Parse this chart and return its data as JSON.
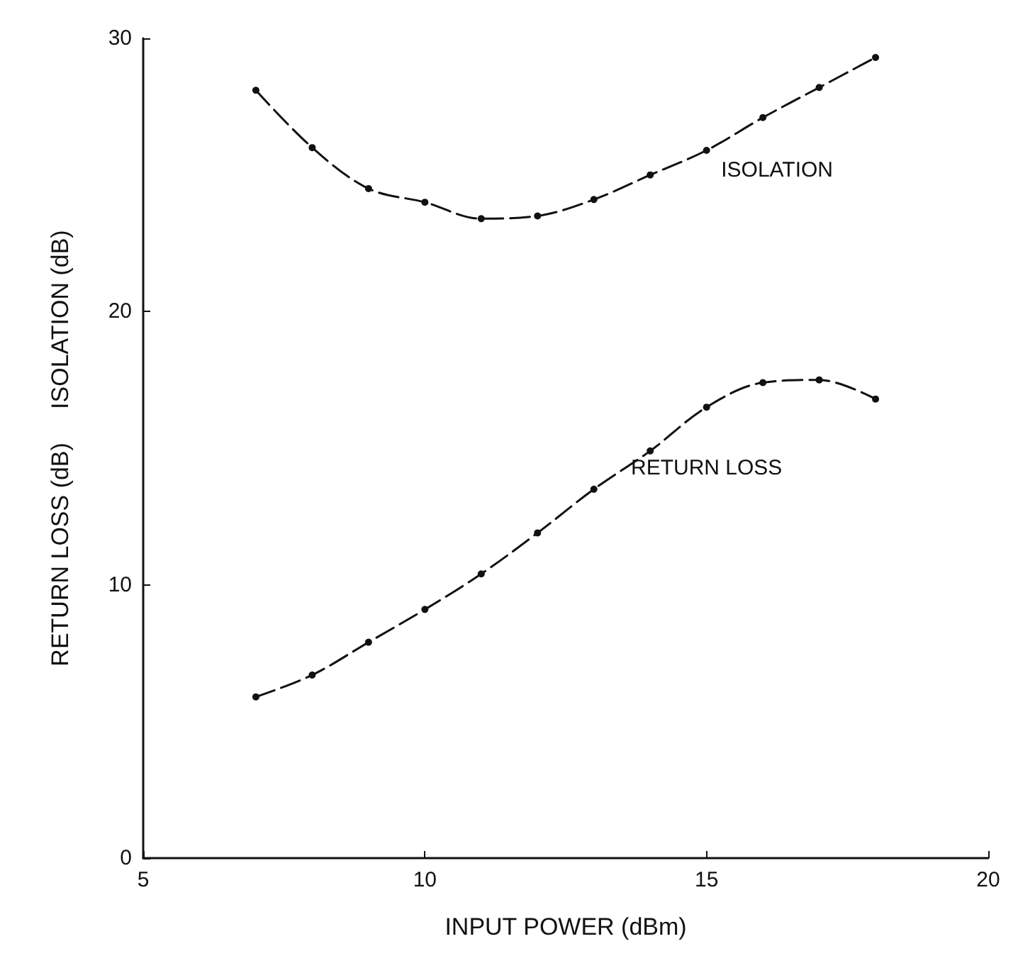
{
  "chart_data": {
    "type": "line",
    "xlabel": "INPUT POWER (dBm)",
    "ylabel": "RETURN LOSS (dB)     ISOLATION (dB)",
    "x": [
      7,
      8,
      9,
      10,
      11,
      12,
      13,
      14,
      15,
      16,
      17,
      18
    ],
    "series": [
      {
        "name": "ISOLATION",
        "color": "#111111",
        "values": [
          28.1,
          26.0,
          24.5,
          24.0,
          23.4,
          23.5,
          24.1,
          25.0,
          25.9,
          27.1,
          28.2,
          29.3
        ]
      },
      {
        "name": "RETURN LOSS",
        "color": "#111111",
        "values": [
          5.9,
          6.7,
          7.9,
          9.1,
          10.4,
          11.9,
          13.5,
          14.9,
          16.5,
          17.4,
          17.5,
          16.8
        ]
      }
    ],
    "xlim": [
      5,
      20
    ],
    "xticks": [
      5,
      10,
      15,
      20
    ],
    "ylim": [
      0,
      30
    ],
    "yticks": [
      0,
      10,
      20,
      30
    ],
    "grid": false,
    "legend": false,
    "marker": "circle",
    "line_style": "dashed"
  }
}
